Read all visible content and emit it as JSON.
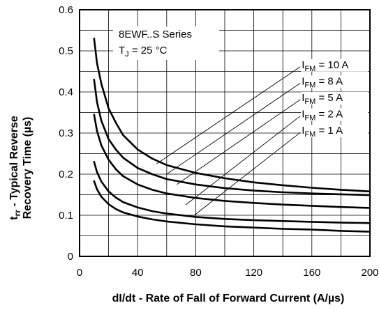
{
  "chart_data": {
    "type": "line",
    "title": "",
    "xlabel": "dI/dt - Rate of Fall of Forward Current (A/µs)",
    "ylabel_line1": "t",
    "ylabel_sub": "rr",
    "ylabel_rest": " - Typical Reverse",
    "ylabel_line2": "Recovery Time (µs)",
    "xlim": [
      0,
      200
    ],
    "ylim": [
      0,
      0.6
    ],
    "xticks": [
      "0",
      "40",
      "80",
      "120",
      "160",
      "200"
    ],
    "yticks": [
      "0",
      "0.1",
      "0.2",
      "0.3",
      "0.4",
      "0.5",
      "0.6"
    ],
    "grid": true,
    "annotation": {
      "series_name": "8EWF..S Series",
      "condition_main": "T",
      "condition_sub": "J",
      "condition_rest": " = 25 °C"
    },
    "series": [
      {
        "name_main": "I",
        "name_sub": "FM",
        "name_rest": " = 10 A",
        "label_xy": [
          153,
          0.458
        ],
        "leader_start": [
          53,
          0.225
        ],
        "x": [
          10,
          12,
          15,
          20,
          25,
          30,
          40,
          50,
          60,
          80,
          100,
          120,
          140,
          160,
          180,
          200
        ],
        "y": [
          0.53,
          0.47,
          0.42,
          0.36,
          0.325,
          0.295,
          0.26,
          0.238,
          0.222,
          0.203,
          0.19,
          0.18,
          0.173,
          0.167,
          0.162,
          0.158
        ]
      },
      {
        "name_main": "I",
        "name_sub": "FM",
        "name_rest": " = 8 A",
        "label_xy": [
          153,
          0.418
        ],
        "leader_start": [
          60,
          0.2
        ],
        "x": [
          10,
          12,
          15,
          20,
          25,
          30,
          40,
          50,
          60,
          80,
          100,
          120,
          140,
          160,
          180,
          200
        ],
        "y": [
          0.43,
          0.375,
          0.33,
          0.285,
          0.26,
          0.24,
          0.215,
          0.2,
          0.188,
          0.175,
          0.166,
          0.16,
          0.156,
          0.153,
          0.151,
          0.149
        ]
      },
      {
        "name_main": "I",
        "name_sub": "FM",
        "name_rest": " = 5 A",
        "label_xy": [
          153,
          0.378
        ],
        "leader_start": [
          67,
          0.175
        ],
        "x": [
          10,
          12,
          15,
          20,
          25,
          30,
          40,
          50,
          60,
          80,
          100,
          120,
          140,
          160,
          180,
          200
        ],
        "y": [
          0.345,
          0.305,
          0.27,
          0.235,
          0.212,
          0.195,
          0.175,
          0.162,
          0.153,
          0.142,
          0.135,
          0.13,
          0.126,
          0.123,
          0.12,
          0.118
        ]
      },
      {
        "name_main": "I",
        "name_sub": "FM",
        "name_rest": " = 2 A",
        "label_xy": [
          153,
          0.338
        ],
        "leader_start": [
          73,
          0.125
        ],
        "x": [
          10,
          12,
          15,
          20,
          25,
          30,
          40,
          50,
          60,
          80,
          100,
          120,
          140,
          160,
          180,
          200
        ],
        "y": [
          0.23,
          0.205,
          0.182,
          0.158,
          0.143,
          0.132,
          0.119,
          0.11,
          0.104,
          0.096,
          0.091,
          0.088,
          0.086,
          0.084,
          0.082,
          0.081
        ]
      },
      {
        "name_main": "I",
        "name_sub": "FM",
        "name_rest": " = 1 A",
        "label_xy": [
          153,
          0.298
        ],
        "leader_start": [
          79,
          0.1
        ],
        "x": [
          10,
          12,
          15,
          20,
          25,
          30,
          40,
          50,
          60,
          80,
          100,
          120,
          140,
          160,
          180,
          200
        ],
        "y": [
          0.183,
          0.163,
          0.145,
          0.127,
          0.115,
          0.107,
          0.097,
          0.09,
          0.085,
          0.078,
          0.073,
          0.07,
          0.067,
          0.065,
          0.062,
          0.06
        ]
      }
    ]
  }
}
